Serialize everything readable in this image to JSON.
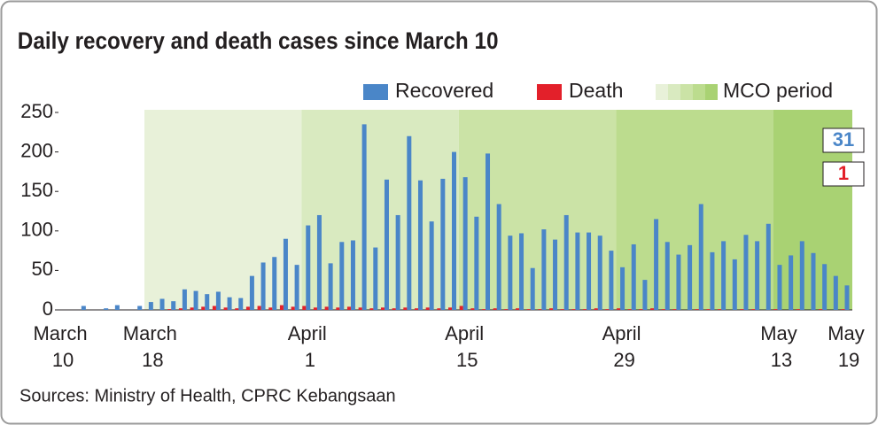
{
  "chart_data": {
    "type": "bar",
    "title": "Daily recovery and death cases since March 10",
    "source": "Sources: Ministry of Health, CPRC Kebangsaan",
    "categories": [
      "March 10",
      null,
      null,
      null,
      null,
      null,
      null,
      null,
      "March 18",
      null,
      null,
      null,
      null,
      null,
      null,
      null,
      null,
      null,
      null,
      null,
      null,
      null,
      "April 1",
      null,
      null,
      null,
      null,
      null,
      null,
      null,
      null,
      null,
      null,
      null,
      null,
      null,
      "April 15",
      null,
      null,
      null,
      null,
      null,
      null,
      null,
      null,
      null,
      null,
      null,
      null,
      null,
      "April 29",
      null,
      null,
      null,
      null,
      null,
      null,
      null,
      null,
      null,
      null,
      null,
      null,
      null,
      "May 13",
      null,
      null,
      null,
      null,
      null,
      "May 19"
    ],
    "series": [
      {
        "name": "Recovered",
        "color": "#4a86c8",
        "values": [
          0,
          0,
          5,
          0,
          2,
          6,
          0,
          5,
          10,
          14,
          11,
          26,
          24,
          20,
          23,
          16,
          15,
          43,
          60,
          67,
          90,
          57,
          107,
          120,
          59,
          86,
          88,
          235,
          79,
          165,
          120,
          220,
          164,
          112,
          166,
          200,
          168,
          118,
          198,
          134,
          94,
          97,
          53,
          102,
          89,
          120,
          98,
          98,
          94,
          75,
          54,
          83,
          38,
          115,
          86,
          70,
          82,
          134,
          73,
          87,
          64,
          95,
          87,
          109,
          57,
          69,
          87,
          72,
          58,
          43,
          31
        ]
      },
      {
        "name": "Death",
        "color": "#e3202a",
        "values": [
          0,
          0,
          0,
          0,
          0,
          0,
          0,
          0,
          0,
          0,
          1,
          2,
          3,
          4,
          5,
          3,
          2,
          4,
          5,
          3,
          6,
          4,
          5,
          3,
          4,
          3,
          4,
          3,
          2,
          3,
          2,
          3,
          2,
          3,
          2,
          3,
          5,
          2,
          1,
          2,
          1,
          2,
          1,
          1,
          2,
          1,
          1,
          1,
          2,
          1,
          2,
          1,
          1,
          2,
          1,
          1,
          0,
          1,
          1,
          1,
          0,
          1,
          1,
          0,
          1,
          0,
          1,
          0,
          1,
          0,
          1
        ]
      }
    ],
    "band_name": "MCO period",
    "band_colors": [
      "#e8f1d9",
      "#d9eac0",
      "#cbe3a6",
      "#bcdc8e",
      "#a9d273"
    ],
    "ylim": [
      0,
      250
    ],
    "yticks": [
      0,
      50,
      100,
      150,
      200,
      250
    ],
    "legend": "top-right"
  }
}
